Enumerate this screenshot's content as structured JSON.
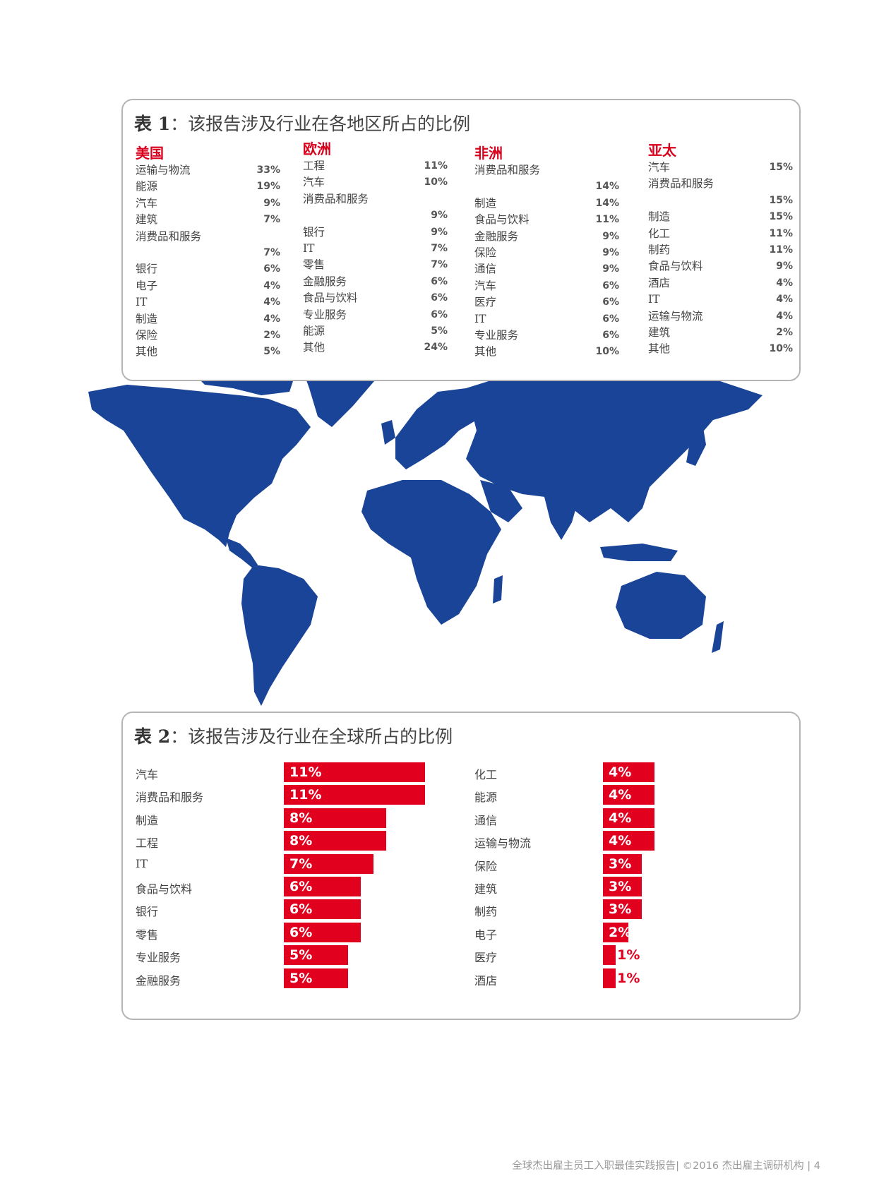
{
  "table1": {
    "title_label": "表 1",
    "title_text": "：该报告涉及行业在各地区所占的比例",
    "regions": [
      {
        "name": "美国",
        "items": [
          {
            "label": "运输与物流",
            "value": "33%"
          },
          {
            "label": "能源",
            "value": "19%"
          },
          {
            "label": "汽车",
            "value": "9%"
          },
          {
            "label": "建筑",
            "value": "7%"
          },
          {
            "label": "消费品和服务",
            "value": ""
          },
          {
            "label": "",
            "value": "7%"
          },
          {
            "label": "银行",
            "value": "6%"
          },
          {
            "label": "电子",
            "value": "4%"
          },
          {
            "label": "IT",
            "value": "4%"
          },
          {
            "label": "制造",
            "value": "4%"
          },
          {
            "label": "保险",
            "value": "2%"
          },
          {
            "label": "其他",
            "value": "5%"
          }
        ]
      },
      {
        "name": "欧洲",
        "items": [
          {
            "label": "工程",
            "value": "11%"
          },
          {
            "label": "汽车",
            "value": "10%"
          },
          {
            "label": "消费品和服务",
            "value": ""
          },
          {
            "label": "",
            "value": "9%"
          },
          {
            "label": "银行",
            "value": "9%"
          },
          {
            "label": "IT",
            "value": "7%"
          },
          {
            "label": "零售",
            "value": "7%"
          },
          {
            "label": "金融服务",
            "value": "6%"
          },
          {
            "label": "食品与饮料",
            "value": "6%"
          },
          {
            "label": "专业服务",
            "value": "6%"
          },
          {
            "label": "能源",
            "value": "5%"
          },
          {
            "label": "其他",
            "value": "24%"
          }
        ]
      },
      {
        "name": "非洲",
        "items": [
          {
            "label": "消费品和服务",
            "value": ""
          },
          {
            "label": "",
            "value": "14%"
          },
          {
            "label": "制造",
            "value": "14%"
          },
          {
            "label": "食品与饮料",
            "value": "11%"
          },
          {
            "label": "金融服务",
            "value": "9%"
          },
          {
            "label": "保险",
            "value": "9%"
          },
          {
            "label": "通信",
            "value": "9%"
          },
          {
            "label": "汽车",
            "value": "6%"
          },
          {
            "label": "医疗",
            "value": "6%"
          },
          {
            "label": "IT",
            "value": "6%"
          },
          {
            "label": "专业服务",
            "value": "6%"
          },
          {
            "label": "其他",
            "value": "10%"
          }
        ]
      },
      {
        "name": "亚太",
        "items": [
          {
            "label": "汽车",
            "value": "15%"
          },
          {
            "label": "消费品和服务",
            "value": ""
          },
          {
            "label": "",
            "value": "15%"
          },
          {
            "label": "制造",
            "value": "15%"
          },
          {
            "label": "化工",
            "value": "11%"
          },
          {
            "label": "制药",
            "value": "11%"
          },
          {
            "label": "食品与饮料",
            "value": "9%"
          },
          {
            "label": "酒店",
            "value": "4%"
          },
          {
            "label": "IT",
            "value": "4%"
          },
          {
            "label": "运输与物流",
            "value": "4%"
          },
          {
            "label": "建筑",
            "value": "2%"
          },
          {
            "label": "其他",
            "value": "10%"
          }
        ]
      }
    ]
  },
  "table2": {
    "title_label": "表 2",
    "title_text": "：该报告涉及行业在全球所占的比例",
    "left": [
      {
        "label": "汽车",
        "value": 11,
        "text": "11%"
      },
      {
        "label": "消费品和服务",
        "value": 11,
        "text": "11%"
      },
      {
        "label": "制造",
        "value": 8,
        "text": "8%"
      },
      {
        "label": "工程",
        "value": 8,
        "text": "8%"
      },
      {
        "label": "IT",
        "value": 7,
        "text": "7%"
      },
      {
        "label": "食品与饮料",
        "value": 6,
        "text": "6%"
      },
      {
        "label": "银行",
        "value": 6,
        "text": "6%"
      },
      {
        "label": "零售",
        "value": 6,
        "text": "6%"
      },
      {
        "label": "专业服务",
        "value": 5,
        "text": "5%"
      },
      {
        "label": "金融服务",
        "value": 5,
        "text": "5%"
      }
    ],
    "right": [
      {
        "label": "化工",
        "value": 4,
        "text": "4%"
      },
      {
        "label": "能源",
        "value": 4,
        "text": "4%"
      },
      {
        "label": "通信",
        "value": 4,
        "text": "4%"
      },
      {
        "label": "运输与物流",
        "value": 4,
        "text": "4%"
      },
      {
        "label": "保险",
        "value": 3,
        "text": "3%"
      },
      {
        "label": "建筑",
        "value": 3,
        "text": "3%"
      },
      {
        "label": "制药",
        "value": 3,
        "text": "3%"
      },
      {
        "label": "电子",
        "value": 2,
        "text": "2%"
      },
      {
        "label": "医疗",
        "value": 1,
        "text": "1%"
      },
      {
        "label": "酒店",
        "value": 1,
        "text": "1%"
      }
    ]
  },
  "colors": {
    "accent": "#e2001f",
    "map": "#1a4497",
    "panel_border": "#b5b5b5"
  },
  "footer": "全球杰出雇主员工入职最佳实践报告| ©2016 杰出雇主调研机构 | 4"
}
